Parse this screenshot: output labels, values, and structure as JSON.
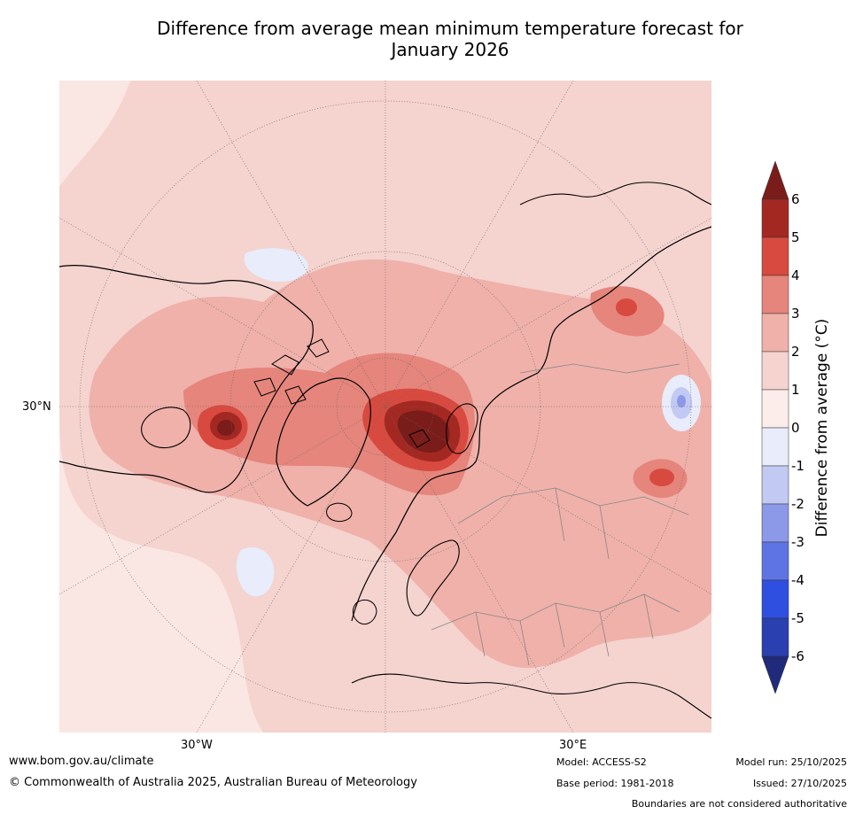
{
  "title_line1": "Difference from average mean minimum temperature forecast for",
  "title_line2": "January 2026",
  "map": {
    "projection": "north-polar-stereographic",
    "lat_label": "30°N",
    "lon_labels": {
      "west": "30°W",
      "east": "30°E"
    },
    "ocean_color": "#fae6e3",
    "features": [
      {
        "id": "greenland-anomaly",
        "value_band": "5 to 6+"
      },
      {
        "id": "arctic-russia-anomaly",
        "value_band": "5 to 6+"
      },
      {
        "id": "siberia-anomaly",
        "value_band": "4 to 5"
      },
      {
        "id": "china-anomaly",
        "value_band": "4 to 5"
      },
      {
        "id": "tibet-cold-spot",
        "value_band": "-2 to -1"
      },
      {
        "id": "north-atlantic-cool-patch",
        "value_band": "-1 to 0"
      },
      {
        "id": "alaska-cool-patch",
        "value_band": "-1 to 0"
      }
    ]
  },
  "colorbar": {
    "label": "Difference from average (°C)",
    "ticks": [
      "6",
      "5",
      "4",
      "3",
      "2",
      "1",
      "0",
      "-1",
      "-2",
      "-3",
      "-4",
      "-5",
      "-6"
    ],
    "bands": [
      {
        "range": "above 6",
        "color": "#7a1d1a"
      },
      {
        "range": "5 to 6",
        "color": "#a42822"
      },
      {
        "range": "4 to 5",
        "color": "#d84a3f"
      },
      {
        "range": "3 to 4",
        "color": "#e5857c"
      },
      {
        "range": "2 to 3",
        "color": "#efb1aa"
      },
      {
        "range": "1 to 2",
        "color": "#f5d3cf"
      },
      {
        "range": "0 to 1",
        "color": "#fcecea"
      },
      {
        "range": "-1 to 0",
        "color": "#e8ecfb"
      },
      {
        "range": "-2 to -1",
        "color": "#c2c9f2"
      },
      {
        "range": "-3 to -2",
        "color": "#8b99e8"
      },
      {
        "range": "-4 to -3",
        "color": "#5f74e4"
      },
      {
        "range": "-5 to -4",
        "color": "#2f4fe0"
      },
      {
        "range": "-6 to -5",
        "color": "#2a3fb0"
      },
      {
        "range": "below -6",
        "color": "#1f2a7a"
      }
    ]
  },
  "footer": {
    "website": "www.bom.gov.au/climate",
    "copyright": "© Commonwealth of Australia 2025, Australian Bureau of Meteorology",
    "model": "Model: ACCESS-S2",
    "base_period": "Base period: 1981-2018",
    "model_run": "Model run: 25/10/2025",
    "issued": "Issued: 27/10/2025",
    "disclaimer": "Boundaries are not considered authoritative"
  }
}
